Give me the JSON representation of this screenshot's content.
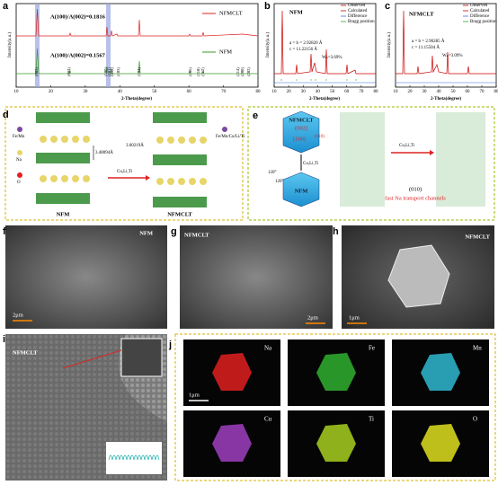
{
  "panels": {
    "a": {
      "label": "a",
      "legend": [
        "NFMCLT",
        "NFM"
      ],
      "ratio_top": "A(100)/A(002)=0.1816",
      "ratio_bottom": "A(100)/A(002)=0.1567",
      "ylabel": "Intensity(a.u.)",
      "xlabel": "2-Theta(degree)",
      "xlim": [
        10,
        80
      ],
      "xticks": [
        10,
        20,
        30,
        40,
        50,
        60,
        70,
        80
      ],
      "peaks": [
        "(002)",
        "(004)",
        "(100)",
        "(101)",
        "(012)",
        "(103)",
        "(104)",
        "(106)",
        "(110)",
        "(112)",
        "(114)",
        "(200)",
        "(202)"
      ]
    },
    "b": {
      "label": "b",
      "name": "NFM",
      "legend": [
        "Observed",
        "Calculated",
        "Difference",
        "Bragg position"
      ],
      "lattice_a": "a = b = 2.92820 Å",
      "lattice_c": "c = 11.22156 Å",
      "wr": "Wₚ=3.69%",
      "ylabel": "Intensity(a.u.)",
      "xlabel": "2-Theta(degree)",
      "xlim": [
        10,
        80
      ],
      "xticks": [
        10,
        20,
        30,
        40,
        50,
        60,
        70,
        80
      ]
    },
    "c": {
      "label": "c",
      "name": "NFMCLT",
      "legend": [
        "Observed",
        "Calculated",
        "Difference",
        "Bragg position"
      ],
      "lattice_a": "a = b = 2.90285 Å",
      "lattice_c": "c = 11.15504 Å",
      "wr": "Wₚ=3.09%",
      "ylabel": "Intensity(a.u.)",
      "xlabel": "2-Theta(degree)",
      "xlim": [
        10,
        80
      ],
      "xticks": [
        10,
        20,
        30,
        40,
        50,
        60,
        70,
        80
      ]
    },
    "d": {
      "label": "d",
      "key": [
        "Fe/Mn",
        "Na",
        "O",
        "Fe/Mn/Cu/Li/Ti"
      ],
      "spacing_left": "3.48094Å",
      "spacing_right": "3.60219Å",
      "dopant": "Cu,Li,Ti",
      "left": "NFM",
      "right": "NFMCLT"
    },
    "e": {
      "label": "e",
      "top": "NFMCLT",
      "face1": "(002)",
      "face2": "(100)",
      "face3": "(010)",
      "bottom": "NFM",
      "dopant": "Cu,Li,Ti",
      "angle1": "120°",
      "angle2": "120°",
      "dopant2": "Cu,Li,Ti",
      "channel": "(010)",
      "note": "fast Na transport channels"
    },
    "f": {
      "label": "f",
      "name": "NFM",
      "scale": "2μm"
    },
    "g": {
      "label": "g",
      "name": "NFMCLT",
      "scale": "2μm"
    },
    "h": {
      "label": "h",
      "name": "NFMCLT",
      "scale": "1μm"
    },
    "i": {
      "label": "i",
      "name": "NFMCLT"
    },
    "j": {
      "label": "j",
      "elements": [
        "Na",
        "Fe",
        "Mn",
        "Cu",
        "Ti",
        "O"
      ],
      "scale": "1μm"
    }
  }
}
